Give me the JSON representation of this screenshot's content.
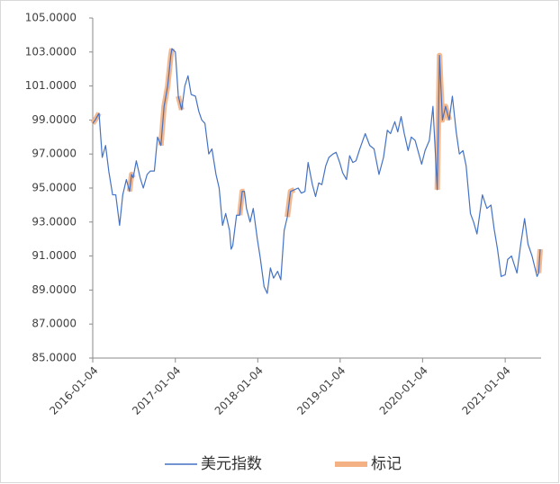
{
  "chart_data": {
    "type": "line",
    "x": [
      "2016-01-04",
      "2016-01-15",
      "2016-02-01",
      "2016-02-15",
      "2016-03-01",
      "2016-03-15",
      "2016-04-01",
      "2016-04-15",
      "2016-05-02",
      "2016-05-16",
      "2016-06-01",
      "2016-06-15",
      "2016-06-24",
      "2016-07-01",
      "2016-07-15",
      "2016-08-01",
      "2016-08-15",
      "2016-09-01",
      "2016-09-15",
      "2016-10-03",
      "2016-10-17",
      "2016-11-01",
      "2016-11-15",
      "2016-12-01",
      "2016-12-15",
      "2016-12-20",
      "2017-01-04",
      "2017-01-17",
      "2017-02-01",
      "2017-02-15",
      "2017-03-01",
      "2017-03-15",
      "2017-04-03",
      "2017-04-18",
      "2017-05-01",
      "2017-05-15",
      "2017-06-01",
      "2017-06-15",
      "2017-07-03",
      "2017-07-17",
      "2017-08-01",
      "2017-08-15",
      "2017-09-01",
      "2017-09-08",
      "2017-09-15",
      "2017-10-02",
      "2017-10-16",
      "2017-10-27",
      "2017-11-06",
      "2017-11-15",
      "2017-12-01",
      "2017-12-15",
      "2018-01-02",
      "2018-01-15",
      "2018-02-01",
      "2018-02-15",
      "2018-03-01",
      "2018-03-15",
      "2018-04-02",
      "2018-04-16",
      "2018-05-01",
      "2018-05-15",
      "2018-05-29",
      "2018-06-15",
      "2018-07-02",
      "2018-07-16",
      "2018-08-01",
      "2018-08-15",
      "2018-09-03",
      "2018-09-17",
      "2018-10-01",
      "2018-10-15",
      "2018-11-01",
      "2018-11-15",
      "2018-12-03",
      "2018-12-17",
      "2019-01-02",
      "2019-01-15",
      "2019-02-01",
      "2019-02-15",
      "2019-03-01",
      "2019-03-15",
      "2019-04-01",
      "2019-04-25",
      "2019-05-15",
      "2019-06-03",
      "2019-06-25",
      "2019-07-15",
      "2019-08-01",
      "2019-08-15",
      "2019-09-03",
      "2019-09-16",
      "2019-10-01",
      "2019-10-15",
      "2019-11-01",
      "2019-11-15",
      "2019-12-02",
      "2019-12-31",
      "2020-01-15",
      "2020-02-03",
      "2020-02-19",
      "2020-03-09",
      "2020-03-19",
      "2020-03-25",
      "2020-04-01",
      "2020-04-15",
      "2020-05-01",
      "2020-05-15",
      "2020-06-01",
      "2020-06-15",
      "2020-07-01",
      "2020-07-15",
      "2020-08-03",
      "2020-08-17",
      "2020-09-01",
      "2020-09-25",
      "2020-10-15",
      "2020-11-02",
      "2020-11-16",
      "2020-12-01",
      "2020-12-17",
      "2021-01-04",
      "2021-01-15",
      "2021-02-01",
      "2021-02-25",
      "2021-03-15",
      "2021-03-31",
      "2021-04-15",
      "2021-05-03",
      "2021-05-25",
      "2021-06-01",
      "2021-06-08"
    ],
    "series": [
      {
        "name": "美元指数",
        "color": "#4472c4",
        "values": [
          98.8,
          99.0,
          99.4,
          96.8,
          97.5,
          96.0,
          94.6,
          94.6,
          92.8,
          94.6,
          95.5,
          94.8,
          95.8,
          95.6,
          96.6,
          95.6,
          95.0,
          95.8,
          96.0,
          96.0,
          98.0,
          97.5,
          99.8,
          101.0,
          102.8,
          103.2,
          103.0,
          100.4,
          99.6,
          101.0,
          101.6,
          100.5,
          100.4,
          99.5,
          99.0,
          98.8,
          97.0,
          97.3,
          95.8,
          95.0,
          92.8,
          93.5,
          92.5,
          91.4,
          91.6,
          93.4,
          93.4,
          94.8,
          94.8,
          93.8,
          93.0,
          93.8,
          92.0,
          90.9,
          89.2,
          88.8,
          90.3,
          89.7,
          90.1,
          89.6,
          92.5,
          93.3,
          94.8,
          94.9,
          95.0,
          94.7,
          94.8,
          96.5,
          95.2,
          94.5,
          95.3,
          95.2,
          96.3,
          96.8,
          97.0,
          97.1,
          96.5,
          95.9,
          95.5,
          96.9,
          96.5,
          96.6,
          97.3,
          98.2,
          97.5,
          97.3,
          95.8,
          96.8,
          98.4,
          98.2,
          98.9,
          98.3,
          99.2,
          98.2,
          97.2,
          98.0,
          97.8,
          96.4,
          97.2,
          97.8,
          99.8,
          94.9,
          102.8,
          101.0,
          99.0,
          99.8,
          99.0,
          100.4,
          98.3,
          97.0,
          97.2,
          96.3,
          93.5,
          93.0,
          92.3,
          94.6,
          93.8,
          94.0,
          92.6,
          91.4,
          89.8,
          89.9,
          90.8,
          91.0,
          90.0,
          91.8,
          93.2,
          91.7,
          91.0,
          89.8,
          90.0,
          91.4
        ]
      },
      {
        "name": "标记",
        "color": "#f4b183",
        "values": [
          98.8,
          99.0,
          99.4,
          null,
          null,
          null,
          null,
          null,
          null,
          null,
          null,
          94.8,
          95.8,
          95.6,
          null,
          null,
          null,
          null,
          null,
          null,
          null,
          97.5,
          99.8,
          101.0,
          102.8,
          103.2,
          null,
          100.4,
          99.6,
          null,
          null,
          null,
          null,
          null,
          null,
          null,
          null,
          null,
          null,
          null,
          null,
          null,
          null,
          null,
          null,
          null,
          93.4,
          94.8,
          94.8,
          null,
          null,
          null,
          null,
          null,
          null,
          null,
          null,
          null,
          null,
          null,
          null,
          93.3,
          94.8,
          94.9,
          null,
          null,
          null,
          null,
          null,
          null,
          null,
          null,
          null,
          null,
          null,
          null,
          null,
          null,
          null,
          null,
          null,
          null,
          null,
          null,
          null,
          null,
          null,
          null,
          null,
          null,
          null,
          null,
          null,
          null,
          null,
          null,
          null,
          null,
          null,
          null,
          null,
          94.9,
          102.8,
          101.0,
          99.0,
          99.8,
          99.0,
          null,
          null,
          null,
          null,
          null,
          null,
          null,
          null,
          null,
          null,
          null,
          null,
          null,
          null,
          null,
          null,
          null,
          null,
          null,
          null,
          null,
          null,
          null,
          90.0,
          91.4
        ]
      }
    ],
    "xlim": [
      "2016-01-04",
      "2021-06-12"
    ],
    "xticks": [
      "2016-01-04",
      "2017-01-04",
      "2018-01-04",
      "2019-01-04",
      "2020-01-04",
      "2021-01-04"
    ],
    "ylim": [
      85,
      105
    ],
    "yticks": [
      {
        "value": 85,
        "label": "85.0000"
      },
      {
        "value": 87,
        "label": "87.0000"
      },
      {
        "value": 89,
        "label": "89.0000"
      },
      {
        "value": 91,
        "label": "91.0000"
      },
      {
        "value": 93,
        "label": "93.0000"
      },
      {
        "value": 95,
        "label": "95.0000"
      },
      {
        "value": 97,
        "label": "97.0000"
      },
      {
        "value": 99,
        "label": "99.0000"
      },
      {
        "value": 101,
        "label": "101.0000"
      },
      {
        "value": 103,
        "label": "103.0000"
      },
      {
        "value": 105,
        "label": "105.0000"
      }
    ],
    "grid": false,
    "legend": "bottom"
  }
}
